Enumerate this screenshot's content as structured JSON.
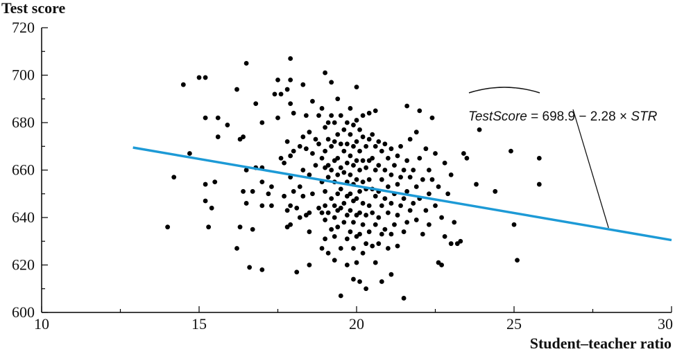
{
  "chart_data": {
    "type": "scatter",
    "title": "",
    "xlabel": "Student–teacher ratio",
    "ylabel": "Test score",
    "xlim": [
      10,
      30
    ],
    "ylim": [
      600,
      720
    ],
    "xticks": [
      "10",
      "15",
      "20",
      "25",
      "30"
    ],
    "yticks": [
      "600",
      "620",
      "640",
      "660",
      "680",
      "700",
      "720"
    ],
    "grid": false,
    "colors": {
      "points": "#000000",
      "line": "#1d9ad6",
      "axis": "#000000"
    },
    "regression_line": {
      "intercept": 698.9,
      "slope": -2.28,
      "x_range": [
        12.9,
        30
      ],
      "equation": {
        "lhs": "TestScore",
        "rhs": " = 698.9 − 2.28 × ",
        "var": "STR"
      }
    },
    "points": [
      [
        14.0,
        636
      ],
      [
        14.2,
        657
      ],
      [
        14.5,
        696
      ],
      [
        14.7,
        667
      ],
      [
        15.0,
        699
      ],
      [
        15.2,
        699
      ],
      [
        15.2,
        682
      ],
      [
        15.2,
        654
      ],
      [
        15.2,
        647
      ],
      [
        15.3,
        636
      ],
      [
        15.4,
        644
      ],
      [
        15.5,
        655
      ],
      [
        15.6,
        674
      ],
      [
        15.6,
        682
      ],
      [
        15.9,
        679
      ],
      [
        16.2,
        694
      ],
      [
        16.2,
        627
      ],
      [
        16.3,
        673
      ],
      [
        16.3,
        636
      ],
      [
        16.4,
        674
      ],
      [
        16.4,
        651
      ],
      [
        16.5,
        705
      ],
      [
        16.5,
        660
      ],
      [
        16.5,
        646
      ],
      [
        16.6,
        619
      ],
      [
        16.7,
        651
      ],
      [
        16.7,
        635
      ],
      [
        16.8,
        688
      ],
      [
        16.8,
        661
      ],
      [
        17.0,
        680
      ],
      [
        17.0,
        661
      ],
      [
        17.0,
        655
      ],
      [
        17.0,
        645
      ],
      [
        17.0,
        618
      ],
      [
        17.2,
        650
      ],
      [
        17.3,
        653
      ],
      [
        17.3,
        645
      ],
      [
        17.4,
        692
      ],
      [
        17.5,
        698
      ],
      [
        17.5,
        682
      ],
      [
        17.6,
        692
      ],
      [
        17.6,
        665
      ],
      [
        17.7,
        663
      ],
      [
        17.7,
        649
      ],
      [
        17.8,
        694
      ],
      [
        17.8,
        672
      ],
      [
        17.8,
        643
      ],
      [
        17.8,
        636
      ],
      [
        17.9,
        707
      ],
      [
        17.9,
        698
      ],
      [
        17.9,
        688
      ],
      [
        17.9,
        666
      ],
      [
        17.9,
        657
      ],
      [
        17.9,
        645
      ],
      [
        17.9,
        637
      ],
      [
        18.0,
        684
      ],
      [
        18.0,
        668
      ],
      [
        18.0,
        651
      ],
      [
        18.1,
        644
      ],
      [
        18.1,
        617
      ],
      [
        18.2,
        670
      ],
      [
        18.2,
        653
      ],
      [
        18.2,
        640
      ],
      [
        18.3,
        696
      ],
      [
        18.3,
        674
      ],
      [
        18.3,
        660
      ],
      [
        18.3,
        649
      ],
      [
        18.4,
        683
      ],
      [
        18.4,
        669
      ],
      [
        18.4,
        641
      ],
      [
        18.5,
        676
      ],
      [
        18.5,
        658
      ],
      [
        18.5,
        642
      ],
      [
        18.5,
        634
      ],
      [
        18.5,
        620
      ],
      [
        18.6,
        689
      ],
      [
        18.6,
        667
      ],
      [
        18.6,
        650
      ],
      [
        18.7,
        673
      ],
      [
        18.7,
        662
      ],
      [
        18.8,
        683
      ],
      [
        18.8,
        671
      ],
      [
        18.8,
        644
      ],
      [
        18.9,
        686
      ],
      [
        18.9,
        665
      ],
      [
        18.9,
        655
      ],
      [
        18.9,
        642
      ],
      [
        18.9,
        627
      ],
      [
        19.0,
        701
      ],
      [
        19.0,
        678
      ],
      [
        19.0,
        668
      ],
      [
        19.0,
        661
      ],
      [
        19.0,
        651
      ],
      [
        19.0,
        645
      ],
      [
        19.0,
        639
      ],
      [
        19.0,
        631
      ],
      [
        19.1,
        680
      ],
      [
        19.1,
        673
      ],
      [
        19.1,
        662
      ],
      [
        19.1,
        657
      ],
      [
        19.1,
        642
      ],
      [
        19.1,
        625
      ],
      [
        19.2,
        697
      ],
      [
        19.2,
        683
      ],
      [
        19.2,
        670
      ],
      [
        19.2,
        660
      ],
      [
        19.2,
        648
      ],
      [
        19.2,
        635
      ],
      [
        19.3,
        680
      ],
      [
        19.3,
        672
      ],
      [
        19.3,
        664
      ],
      [
        19.3,
        655
      ],
      [
        19.3,
        645
      ],
      [
        19.3,
        640
      ],
      [
        19.3,
        632
      ],
      [
        19.3,
        622
      ],
      [
        19.4,
        690
      ],
      [
        19.4,
        675
      ],
      [
        19.4,
        665
      ],
      [
        19.4,
        658
      ],
      [
        19.4,
        650
      ],
      [
        19.4,
        643
      ],
      [
        19.4,
        636
      ],
      [
        19.5,
        683
      ],
      [
        19.5,
        671
      ],
      [
        19.5,
        661
      ],
      [
        19.5,
        652
      ],
      [
        19.5,
        644
      ],
      [
        19.5,
        627
      ],
      [
        19.5,
        607
      ],
      [
        19.6,
        677
      ],
      [
        19.6,
        668
      ],
      [
        19.6,
        659
      ],
      [
        19.6,
        646
      ],
      [
        19.6,
        638
      ],
      [
        19.7,
        680
      ],
      [
        19.7,
        671
      ],
      [
        19.7,
        663
      ],
      [
        19.7,
        655
      ],
      [
        19.7,
        649
      ],
      [
        19.7,
        641
      ],
      [
        19.7,
        631
      ],
      [
        19.7,
        620
      ],
      [
        19.8,
        686
      ],
      [
        19.8,
        675
      ],
      [
        19.8,
        666
      ],
      [
        19.8,
        658
      ],
      [
        19.8,
        650
      ],
      [
        19.8,
        643
      ],
      [
        19.8,
        634
      ],
      [
        19.9,
        679
      ],
      [
        19.9,
        670
      ],
      [
        19.9,
        662
      ],
      [
        19.9,
        654
      ],
      [
        19.9,
        647
      ],
      [
        19.9,
        638
      ],
      [
        19.9,
        627
      ],
      [
        19.9,
        614
      ],
      [
        20.0,
        695
      ],
      [
        20.0,
        681
      ],
      [
        20.0,
        672
      ],
      [
        20.0,
        664
      ],
      [
        20.0,
        656
      ],
      [
        20.0,
        648
      ],
      [
        20.0,
        641
      ],
      [
        20.0,
        632
      ],
      [
        20.0,
        621
      ],
      [
        20.1,
        677
      ],
      [
        20.1,
        668
      ],
      [
        20.1,
        660
      ],
      [
        20.1,
        651
      ],
      [
        20.1,
        642
      ],
      [
        20.1,
        633
      ],
      [
        20.1,
        613
      ],
      [
        20.2,
        683
      ],
      [
        20.2,
        674
      ],
      [
        20.2,
        664
      ],
      [
        20.2,
        655
      ],
      [
        20.2,
        646
      ],
      [
        20.2,
        637
      ],
      [
        20.2,
        625
      ],
      [
        20.3,
        670
      ],
      [
        20.3,
        661
      ],
      [
        20.3,
        652
      ],
      [
        20.3,
        641
      ],
      [
        20.3,
        629
      ],
      [
        20.3,
        610
      ],
      [
        20.4,
        684
      ],
      [
        20.4,
        673
      ],
      [
        20.4,
        664
      ],
      [
        20.4,
        656
      ],
      [
        20.4,
        645
      ],
      [
        20.4,
        634
      ],
      [
        20.5,
        675
      ],
      [
        20.5,
        665
      ],
      [
        20.5,
        652
      ],
      [
        20.5,
        642
      ],
      [
        20.5,
        628
      ],
      [
        20.6,
        685
      ],
      [
        20.6,
        670
      ],
      [
        20.6,
        660
      ],
      [
        20.6,
        649
      ],
      [
        20.6,
        637
      ],
      [
        20.6,
        621
      ],
      [
        20.7,
        672
      ],
      [
        20.7,
        662
      ],
      [
        20.7,
        651
      ],
      [
        20.7,
        640
      ],
      [
        20.7,
        629
      ],
      [
        20.8,
        668
      ],
      [
        20.8,
        656
      ],
      [
        20.8,
        645
      ],
      [
        20.8,
        633
      ],
      [
        20.8,
        613
      ],
      [
        20.9,
        671
      ],
      [
        20.9,
        660
      ],
      [
        20.9,
        648
      ],
      [
        20.9,
        635
      ],
      [
        21.0,
        665
      ],
      [
        21.0,
        653
      ],
      [
        21.0,
        642
      ],
      [
        21.0,
        627
      ],
      [
        21.1,
        669
      ],
      [
        21.1,
        658
      ],
      [
        21.1,
        646
      ],
      [
        21.1,
        633
      ],
      [
        21.1,
        616
      ],
      [
        21.2,
        662
      ],
      [
        21.2,
        650
      ],
      [
        21.2,
        637
      ],
      [
        21.3,
        666
      ],
      [
        21.3,
        654
      ],
      [
        21.3,
        641
      ],
      [
        21.3,
        628
      ],
      [
        21.4,
        670
      ],
      [
        21.4,
        657
      ],
      [
        21.4,
        645
      ],
      [
        21.5,
        660
      ],
      [
        21.5,
        648
      ],
      [
        21.5,
        634
      ],
      [
        21.5,
        606
      ],
      [
        21.6,
        687
      ],
      [
        21.6,
        664
      ],
      [
        21.6,
        651
      ],
      [
        21.6,
        638
      ],
      [
        21.7,
        673
      ],
      [
        21.7,
        657
      ],
      [
        21.7,
        643
      ],
      [
        21.8,
        660
      ],
      [
        21.8,
        646
      ],
      [
        21.9,
        676
      ],
      [
        21.9,
        653
      ],
      [
        21.9,
        639
      ],
      [
        22.0,
        685
      ],
      [
        22.0,
        665
      ],
      [
        22.0,
        648
      ],
      [
        22.1,
        656
      ],
      [
        22.1,
        633
      ],
      [
        22.2,
        669
      ],
      [
        22.2,
        643
      ],
      [
        22.3,
        660
      ],
      [
        22.3,
        650
      ],
      [
        22.3,
        637
      ],
      [
        22.4,
        682
      ],
      [
        22.4,
        656
      ],
      [
        22.5,
        667
      ],
      [
        22.5,
        645
      ],
      [
        22.6,
        653
      ],
      [
        22.6,
        621
      ],
      [
        22.7,
        640
      ],
      [
        22.7,
        620
      ],
      [
        22.8,
        663
      ],
      [
        22.8,
        632
      ],
      [
        22.9,
        650
      ],
      [
        23.0,
        629
      ],
      [
        23.0,
        658
      ],
      [
        23.1,
        638
      ],
      [
        23.2,
        629
      ],
      [
        23.3,
        630
      ],
      [
        23.4,
        667
      ],
      [
        23.5,
        665
      ],
      [
        23.8,
        654
      ],
      [
        23.9,
        677
      ],
      [
        24.4,
        651
      ],
      [
        24.9,
        668
      ],
      [
        25.0,
        637
      ],
      [
        25.1,
        622
      ],
      [
        25.8,
        665
      ],
      [
        25.8,
        654
      ]
    ]
  }
}
